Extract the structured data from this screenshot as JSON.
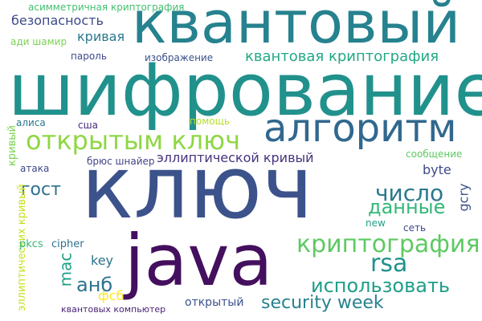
{
  "word_cloud": {
    "words": [
      {
        "key": "klyuch",
        "text": "ключ",
        "color": "#3b528b"
      },
      {
        "key": "shifrovanie",
        "text": "шифрование",
        "color": "#21918c"
      },
      {
        "key": "kvantovyy",
        "text": "квантовый",
        "color": "#26828e"
      },
      {
        "key": "java",
        "text": "java",
        "color": "#440f5e"
      },
      {
        "key": "algoritm",
        "text": "алгоритм",
        "color": "#31688e"
      },
      {
        "key": "otkrytym_klyuch",
        "text": "открытым ключ",
        "color": "#8fd744"
      },
      {
        "key": "kriptografiya",
        "text": "криптография",
        "color": "#5ec962"
      },
      {
        "key": "ispolzovat",
        "text": "использовать",
        "color": "#1f9e89"
      },
      {
        "key": "security_week",
        "text": "security week",
        "color": "#26828e"
      },
      {
        "key": "chislo",
        "text": "число",
        "color": "#2a788e"
      },
      {
        "key": "dannye",
        "text": "данные",
        "color": "#35b779"
      },
      {
        "key": "rsa",
        "text": "rsa",
        "color": "#21918c"
      },
      {
        "key": "gost",
        "text": "гост",
        "color": "#2c728e"
      },
      {
        "key": "anb",
        "text": "анб",
        "color": "#2c728e"
      },
      {
        "key": "kvantovaya_kriptografiya",
        "text": "квантовая криптография",
        "color": "#22a884"
      },
      {
        "key": "ellipticheskoy_krivyy",
        "text": "эллиптической кривый",
        "color": "#46327e"
      },
      {
        "key": "bezopasnost",
        "text": "безопасность",
        "color": "#3e4989"
      },
      {
        "key": "krivaya",
        "text": "кривая",
        "color": "#2a788e"
      },
      {
        "key": "mac",
        "text": "mac",
        "color": "#1fa088"
      },
      {
        "key": "byte",
        "text": "byte",
        "color": "#3e4989"
      },
      {
        "key": "gcry",
        "text": "gcry",
        "color": "#3b528b"
      },
      {
        "key": "key",
        "text": "key",
        "color": "#2c728e"
      },
      {
        "key": "fsb",
        "text": "фсб",
        "color": "#fde725"
      },
      {
        "key": "otkrytyy",
        "text": "открытый",
        "color": "#3b528b"
      },
      {
        "key": "asimmetrichnaya",
        "text": "асимметричная криптография",
        "color": "#44bf70"
      },
      {
        "key": "adi_shamir",
        "text": "ади шамир",
        "color": "#7ad151"
      },
      {
        "key": "parol",
        "text": "пароль",
        "color": "#3e4989"
      },
      {
        "key": "izobrazhenie",
        "text": "изображение",
        "color": "#3b528b"
      },
      {
        "key": "alisa",
        "text": "алиса",
        "color": "#2a788e"
      },
      {
        "key": "ssha",
        "text": "сша",
        "color": "#472a7a"
      },
      {
        "key": "pomoshch",
        "text": "помощь",
        "color": "#b5de2b"
      },
      {
        "key": "soobshchenie",
        "text": "сообщение",
        "color": "#5ec962"
      },
      {
        "key": "ataka",
        "text": "атака",
        "color": "#3e4989"
      },
      {
        "key": "bryus",
        "text": "брюс шнайер",
        "color": "#414487"
      },
      {
        "key": "ellipticheskih",
        "text": "эллиптических кривый",
        "color": "#c8e020"
      },
      {
        "key": "krivyy",
        "text": "кривый",
        "color": "#7ad151"
      },
      {
        "key": "pkcs",
        "text": "pkcs",
        "color": "#35b779"
      },
      {
        "key": "cipher",
        "text": "cipher",
        "color": "#2c728e"
      },
      {
        "key": "new",
        "text": "new",
        "color": "#1fa088"
      },
      {
        "key": "set",
        "text": "сеть",
        "color": "#3e4989"
      },
      {
        "key": "kvantovyh",
        "text": "квантовых компьютер",
        "color": "#482173"
      }
    ]
  }
}
